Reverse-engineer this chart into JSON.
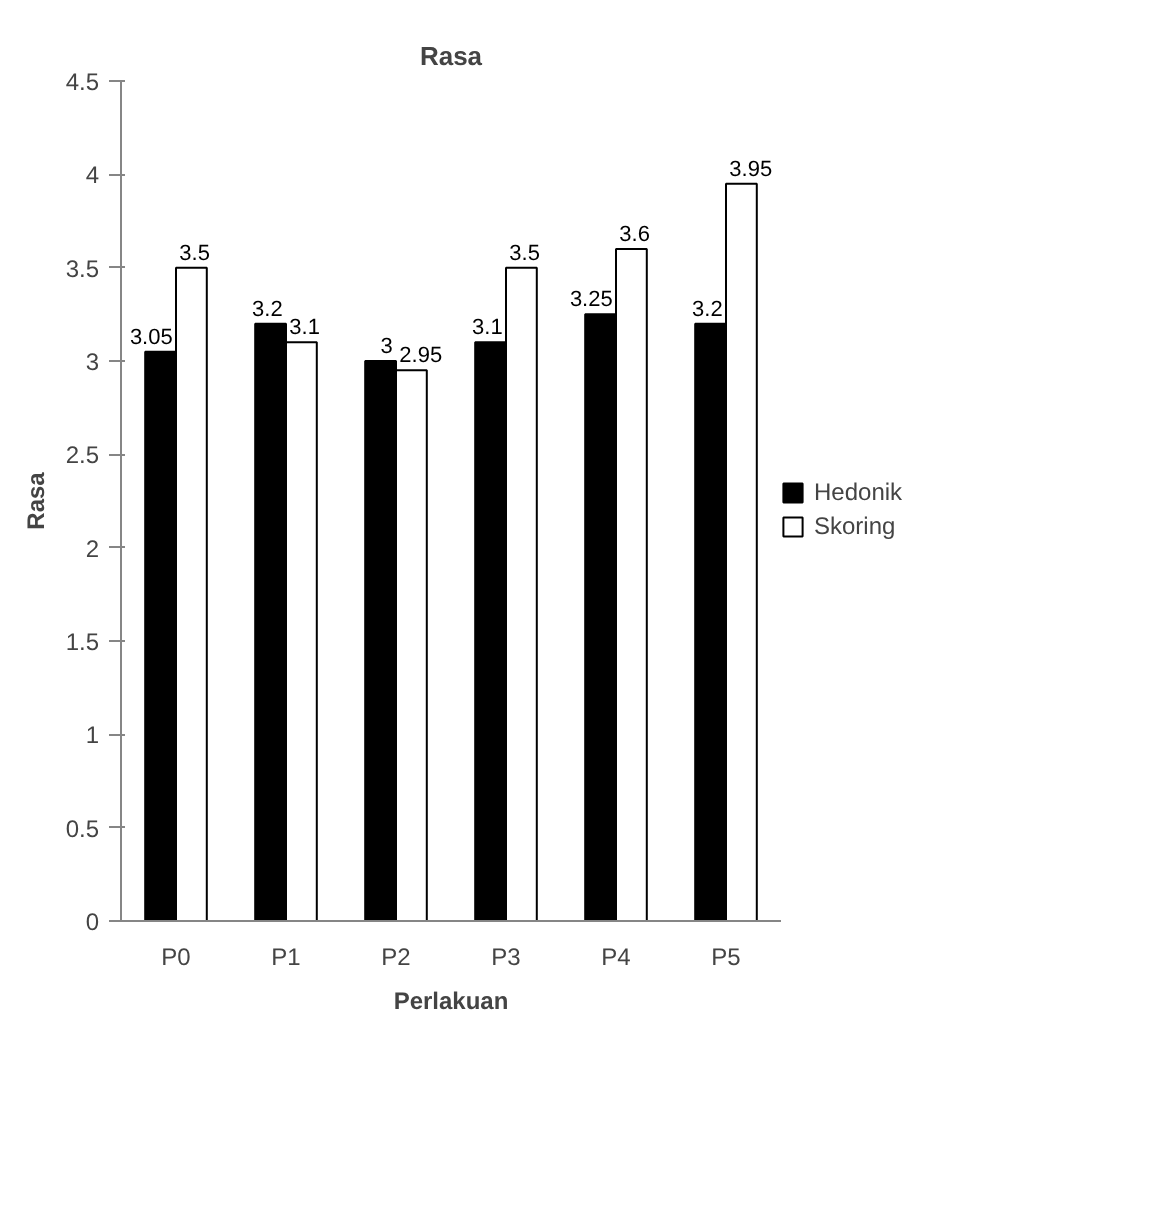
{
  "chart_data": {
    "type": "bar",
    "title": "Rasa",
    "xlabel": "Perlakuan",
    "ylabel": "Rasa",
    "categories": [
      "P0",
      "P1",
      "P2",
      "P3",
      "P4",
      "P5"
    ],
    "series": [
      {
        "name": "Hedonik",
        "color": "#000000",
        "values": [
          3.05,
          3.2,
          3,
          3.1,
          3.25,
          3.2
        ]
      },
      {
        "name": "Skoring",
        "color": "#ffffff",
        "values": [
          3.5,
          3.1,
          2.95,
          3.5,
          3.6,
          3.95
        ]
      }
    ],
    "ylim": [
      0,
      4.5
    ],
    "yticks": [
      0,
      0.5,
      1,
      1.5,
      2,
      2.5,
      3,
      3.5,
      4,
      4.5
    ],
    "grid": false,
    "legend": "right",
    "data_labels": true
  }
}
